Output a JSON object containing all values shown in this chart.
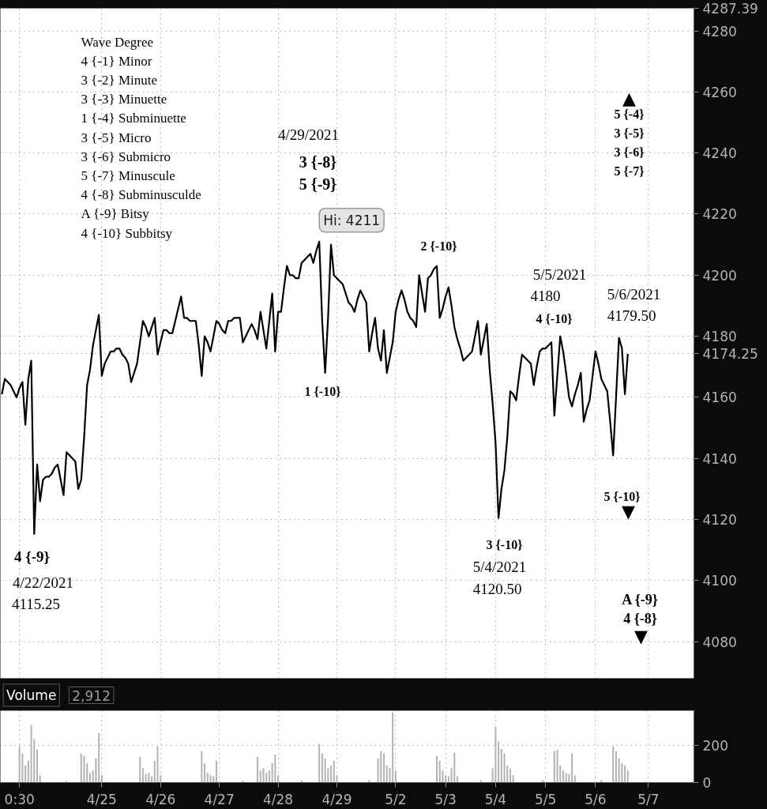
{
  "chart_data": [
    {
      "type": "line",
      "ylim": [
        4068,
        4287.39
      ],
      "categories": [
        null,
        null,
        null,
        null,
        null,
        null,
        null,
        null,
        null,
        null,
        null,
        null,
        null,
        null,
        null,
        null,
        null,
        null,
        null,
        null,
        null,
        null,
        null,
        null,
        null,
        null,
        null,
        null,
        null,
        null,
        null,
        null,
        null,
        null,
        null,
        null,
        null,
        null,
        null,
        null,
        null,
        null,
        null,
        null,
        null,
        null,
        null,
        null,
        null,
        null,
        null,
        null,
        null,
        null,
        null,
        null,
        null,
        null,
        null,
        null,
        null,
        null,
        null,
        null,
        null,
        null,
        null,
        null,
        null,
        null,
        null,
        null,
        null,
        null,
        null,
        null,
        null,
        null,
        null,
        null,
        null,
        null,
        null,
        null,
        null,
        null,
        null,
        null,
        null,
        null,
        null,
        null,
        null,
        null,
        null,
        null,
        null,
        null,
        null,
        null,
        null,
        null,
        null,
        null,
        null,
        null,
        null,
        null,
        null,
        null,
        null,
        null,
        null,
        null,
        null,
        null,
        null,
        null,
        null,
        null,
        null,
        null,
        null,
        null,
        null,
        null,
        null,
        null,
        null,
        null,
        null,
        null,
        null,
        null,
        null,
        null,
        null,
        null,
        null,
        null,
        null,
        null,
        null,
        null,
        null,
        null,
        null,
        null,
        null,
        null,
        null,
        null,
        null,
        null,
        null,
        null,
        null,
        null,
        null,
        null,
        null,
        null,
        null,
        null,
        null,
        null,
        null,
        null,
        null,
        null,
        null,
        null,
        null,
        null,
        null,
        null,
        null,
        null,
        null,
        null,
        null,
        null,
        null,
        null,
        null,
        null,
        null,
        null,
        null,
        null,
        null,
        null,
        null,
        null,
        null,
        null,
        null,
        null,
        null,
        null,
        null,
        null,
        null,
        null,
        null,
        null,
        null,
        null,
        null,
        null,
        null,
        null,
        null,
        null,
        null,
        null,
        null,
        null,
        null,
        null,
        null,
        null,
        null,
        null,
        null,
        null,
        null,
        null,
        null,
        null,
        null,
        null,
        null,
        null,
        null,
        null
      ],
      "yticks": [
        4080,
        4100,
        4120,
        4140,
        4160,
        4174.25,
        4180,
        4200,
        4220,
        4240,
        4260,
        4280,
        4287.39
      ],
      "tick_labels": "y",
      "grid": true,
      "annotations": [
        "Wave Degree",
        "4 {-1} Minor",
        "3 {-2} Minute",
        "3 {-3} Minuette",
        "1 {-4} Subminuette",
        "3 {-5} Micro",
        "3 {-6} Submicro",
        "5 {-7} Minuscule",
        "4 {-8} Subminusculde",
        "A {-9} Bitsy",
        "4 {-10} Subbitsy",
        "4 {-9}",
        "4/22/2021",
        "4115.25",
        "4/29/2021",
        "3 {-8}",
        "5 {-9}",
        "1 {-10}",
        "2 {-10}",
        "5/5/2021",
        "4180",
        "4 {-10}",
        "5/6/2021",
        "4179.50",
        "▲",
        "5 {-4}",
        "3 {-5}",
        "3 {-6}",
        "5 {-7}",
        "5 {-10}",
        "▼",
        "3 {-10}",
        "5/4/2021",
        "4120.50",
        "A {-9}",
        "4 {-8}",
        "▼"
      ],
      "series": [
        {
          "color": "#000000",
          "values": [
            4161,
            4166,
            4165,
            4164,
            4162,
            4160,
            4163,
            4165,
            4151,
            4166,
            4172,
            4115.25,
            4138,
            4126,
            4133,
            4134,
            4134,
            4135,
            4137,
            4138,
            4133,
            4128,
            4142,
            4141,
            4140,
            4139,
            4130,
            4133,
            4147,
            4164,
            4169,
            4177,
            4182,
            4187,
            4167,
            4171,
            4173,
            4175,
            4175,
            4176,
            4176,
            4174,
            4173,
            4171,
            4165,
            4168,
            4171,
            4178,
            4185,
            4183,
            4180,
            4183,
            4186,
            4174,
            4178,
            4182,
            4182,
            4181,
            4181,
            4185,
            4189,
            4193,
            4186,
            4186,
            4185,
            4185,
            4185,
            4177,
            4167,
            4180,
            4178,
            4175,
            4180,
            4185,
            4184,
            4182,
            4181,
            4185,
            4185,
            4186,
            4186,
            4186,
            4178,
            4180,
            4182,
            4184,
            4182,
            4179,
            4188,
            4182,
            4176,
            4185,
            4194,
            4175,
            4188,
            4188,
            4196,
            4203,
            4200,
            4200,
            4199,
            4199,
            4204,
            4205,
            4206,
            4207,
            4204,
            4208,
            4211,
            4185,
            4168,
            4186,
            4210,
            4200,
            4199,
            4198,
            4197,
            4194,
            4191,
            4190,
            4188,
            4192,
            4195,
            4193,
            4191,
            4175,
            4181,
            4186,
            4176,
            4172,
            4182,
            4168,
            4173,
            4178,
            4188,
            4192,
            4195,
            4192,
            4188,
            4186,
            4185,
            4183,
            4200,
            4194,
            4188,
            4199,
            4200,
            4202,
            4203,
            4186,
            4189,
            4193,
            4196,
            4190,
            4183,
            4179,
            4176,
            4172,
            4173,
            4174,
            4175,
            4180,
            4185,
            4174,
            4179,
            4184,
            4169,
            4158,
            4145,
            4120.5,
            4130,
            4136,
            4147,
            4162,
            4161,
            4159,
            4167,
            4174,
            4173,
            4172,
            4171,
            4164,
            4170,
            4175,
            4176,
            4176,
            4177,
            4178,
            4154,
            4167,
            4180,
            4175,
            4168,
            4160,
            4157,
            4161,
            4164,
            4168,
            4152,
            4156,
            4159,
            4167,
            4175,
            4171,
            4166,
            4164,
            4162,
            4152,
            4141,
            4160,
            4179.5,
            4176,
            4161,
            4174.25,
            null,
            null,
            null,
            null,
            null,
            null,
            null,
            null,
            null,
            null,
            null,
            null,
            null,
            null,
            null,
            null,
            null,
            null,
            null,
            null,
            null,
            null
          ],
          "value_labels": [
            null,
            null,
            null,
            null,
            null,
            null,
            null,
            null,
            null,
            null,
            null,
            null,
            null,
            null,
            null,
            null,
            null,
            null,
            null,
            null,
            null,
            null,
            null,
            null,
            null,
            null,
            null,
            null,
            null,
            null,
            null,
            null,
            null,
            null,
            null,
            null,
            null,
            null,
            null,
            null,
            null,
            null,
            null,
            null,
            null,
            null,
            null,
            null,
            null,
            null,
            null,
            null,
            null,
            null,
            null,
            null,
            null,
            null,
            null,
            null,
            null,
            null,
            null,
            null,
            null,
            null,
            null,
            null,
            null,
            null,
            null,
            null,
            null,
            null,
            null,
            null,
            null,
            null,
            null,
            null,
            null,
            null,
            null,
            null,
            null,
            null,
            null,
            null,
            null,
            null,
            null,
            null,
            null,
            null,
            null,
            null,
            null,
            null,
            null,
            null,
            null,
            null,
            null,
            null,
            null,
            null,
            null,
            null,
            "Hi: 4211",
            null,
            null,
            null,
            null,
            null,
            null,
            null,
            null,
            null,
            null,
            null,
            null,
            null,
            null,
            null,
            null,
            null,
            null,
            null,
            null,
            null,
            null,
            null,
            null,
            null,
            null,
            null,
            null,
            null,
            null,
            null,
            null,
            null,
            null,
            null,
            null,
            null,
            null,
            null,
            null,
            null,
            null,
            null,
            null,
            null,
            null,
            null,
            null,
            null,
            null,
            null,
            null,
            null,
            null,
            null,
            null,
            null,
            null,
            null,
            null,
            null,
            null,
            null,
            null,
            null,
            null,
            null,
            null,
            null,
            null,
            null,
            null,
            null,
            null,
            null,
            null,
            null,
            null,
            null,
            null,
            null,
            null,
            null,
            null,
            null,
            null,
            null,
            null,
            null,
            null,
            null,
            null,
            null,
            null,
            null,
            null,
            null,
            null,
            null,
            null,
            null,
            null,
            null,
            null,
            null,
            null,
            null,
            null,
            null,
            null,
            null,
            null,
            null,
            null,
            null,
            null,
            null,
            null,
            null,
            null,
            null,
            null,
            null,
            null,
            null,
            null,
            null
          ]
        }
      ]
    },
    {
      "type": "bar",
      "title": "Volume",
      "subtitle": "2,912",
      "ylim": [
        0,
        387
      ],
      "categories": [
        null,
        null,
        null,
        null,
        null,
        null,
        "0:30",
        null,
        null,
        null,
        null,
        null,
        null,
        null,
        null,
        null,
        null,
        null,
        null,
        null,
        null,
        null,
        null,
        null,
        null,
        null,
        null,
        null,
        null,
        null,
        null,
        null,
        null,
        null,
        "4/25",
        null,
        null,
        null,
        null,
        null,
        null,
        null,
        null,
        null,
        null,
        null,
        null,
        null,
        null,
        null,
        null,
        null,
        null,
        null,
        "4/26",
        null,
        null,
        null,
        null,
        null,
        null,
        null,
        null,
        null,
        null,
        null,
        null,
        null,
        null,
        null,
        null,
        null,
        null,
        null,
        "4/27",
        null,
        null,
        null,
        null,
        null,
        null,
        null,
        null,
        null,
        null,
        null,
        null,
        null,
        null,
        null,
        null,
        null,
        null,
        null,
        "4/28",
        null,
        null,
        null,
        null,
        null,
        null,
        null,
        null,
        null,
        null,
        null,
        null,
        null,
        null,
        null,
        null,
        null,
        null,
        null,
        "4/29",
        null,
        null,
        null,
        null,
        null,
        null,
        null,
        null,
        null,
        null,
        null,
        null,
        null,
        null,
        null,
        null,
        null,
        null,
        null,
        "5/2",
        null,
        null,
        null,
        null,
        null,
        null,
        null,
        null,
        null,
        null,
        null,
        null,
        null,
        null,
        null,
        null,
        "5/3",
        null,
        null,
        null,
        null,
        null,
        null,
        null,
        null,
        null,
        null,
        null,
        null,
        null,
        null,
        null,
        null,
        "5/4",
        null,
        null,
        null,
        null,
        null,
        null,
        null,
        null,
        null,
        null,
        null,
        null,
        null,
        null,
        null,
        null,
        "5/5",
        null,
        null,
        null,
        null,
        null,
        null,
        null,
        null,
        null,
        null,
        null,
        null,
        null,
        null,
        null,
        null,
        "5/6",
        null,
        null,
        null,
        null,
        null,
        null,
        null,
        null,
        null,
        null,
        null,
        null,
        null,
        null,
        null,
        null,
        null,
        "5/7",
        null,
        null,
        null,
        null,
        null,
        null,
        null,
        null,
        null,
        null,
        null,
        null,
        null,
        null,
        null
      ],
      "yticks": [
        0,
        200
      ],
      "grid": true,
      "color": "#b4b4b4",
      "values": [
        null,
        null,
        null,
        null,
        null,
        null,
        195,
        156,
        91,
        117,
        312,
        234,
        177,
        39,
        null,
        null,
        null,
        null,
        null,
        null,
        null,
        null,
        10,
        null,
        null,
        null,
        null,
        156,
        143,
        104,
        52,
        65,
        130,
        265,
        39,
        null,
        null,
        null,
        null,
        null,
        null,
        null,
        null,
        null,
        null,
        null,
        null,
        138,
        78,
        47,
        52,
        34,
        117,
        195,
        39,
        null,
        null,
        null,
        null,
        null,
        null,
        null,
        null,
        null,
        null,
        null,
        null,
        null,
        169,
        104,
        52,
        39,
        34,
        117,
        null,
        null,
        null,
        null,
        null,
        null,
        null,
        null,
        10,
        null,
        null,
        null,
        null,
        138,
        65,
        78,
        52,
        65,
        104,
        151,
        39,
        null,
        null,
        null,
        null,
        null,
        null,
        null,
        10,
        null,
        null,
        null,
        null,
        null,
        208,
        156,
        130,
        78,
        91,
        117,
        39,
        null,
        null,
        null,
        null,
        null,
        null,
        null,
        null,
        null,
        null,
        13,
        null,
        null,
        130,
        169,
        156,
        91,
        78,
        377,
        65,
        null,
        null,
        null,
        null,
        null,
        null,
        null,
        null,
        null,
        null,
        null,
        null,
        null,
        143,
        117,
        65,
        39,
        34,
        78,
        161,
        34,
        null,
        null,
        null,
        null,
        null,
        null,
        null,
        13,
        null,
        null,
        null,
        78,
        299,
        221,
        182,
        156,
        91,
        73,
        39,
        null,
        null,
        null,
        null,
        null,
        null,
        null,
        null,
        null,
        13,
        null,
        null,
        null,
        169,
        177,
        91,
        65,
        52,
        47,
        156,
        39,
        null,
        null,
        null,
        null,
        null,
        null,
        null,
        null,
        13,
        null,
        null,
        null,
        195,
        169,
        130,
        104,
        91,
        65,
        null,
        null,
        null,
        null,
        null,
        null,
        null,
        null,
        null,
        null,
        null,
        null,
        null,
        null,
        null,
        null,
        null,
        null,
        null,
        null,
        null,
        null
      ]
    }
  ]
}
